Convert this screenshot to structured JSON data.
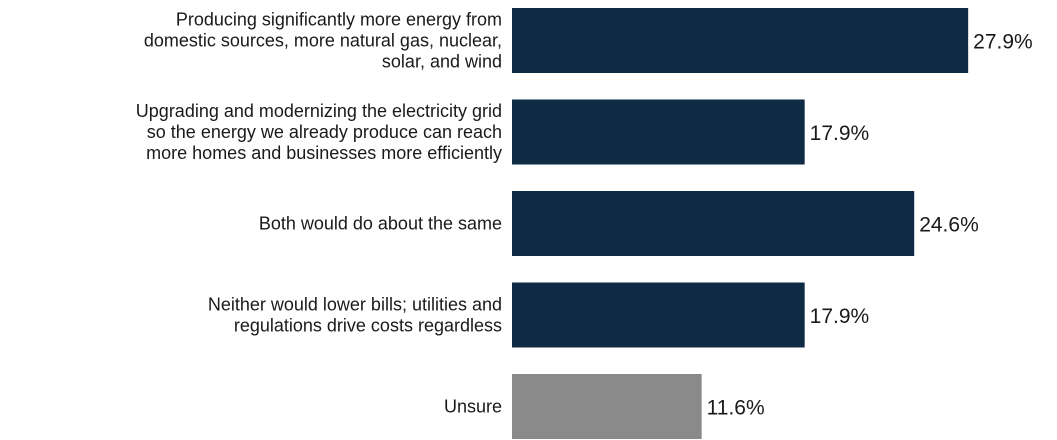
{
  "chart_data": {
    "type": "bar",
    "orientation": "horizontal",
    "title": "",
    "xlabel": "",
    "ylabel": "",
    "grid": false,
    "legend": "none",
    "categories": [
      "Producing significantly more energy from domestic sources, more natural gas, nuclear, solar, and wind",
      "Upgrading and modernizing the electricity grid so the energy we already produce can reach more homes and businesses more efficiently",
      "Both would do about the same",
      "Neither would lower bills; utilities and regulations drive costs regardless",
      "Unsure"
    ],
    "category_lines": [
      [
        "Producing significantly more energy from",
        "domestic sources, more natural gas, nuclear,",
        "solar, and wind"
      ],
      [
        "Upgrading and modernizing the electricity grid",
        "so the energy we already produce can reach",
        "more homes and businesses more efficiently"
      ],
      [
        "Both would do about the same"
      ],
      [
        "Neither would lower bills; utilities and",
        "regulations drive costs regardless"
      ],
      [
        "Unsure"
      ]
    ],
    "values": [
      27.9,
      17.9,
      24.6,
      17.9,
      11.6
    ],
    "value_labels": [
      "27.9%",
      "17.9%",
      "24.6%",
      "17.9%",
      "11.6%"
    ],
    "bar_colors": [
      "#0f2a44",
      "#0f2a44",
      "#0f2a44",
      "#0f2a44",
      "#8a8a8a"
    ],
    "xlim": [
      0,
      30
    ]
  }
}
